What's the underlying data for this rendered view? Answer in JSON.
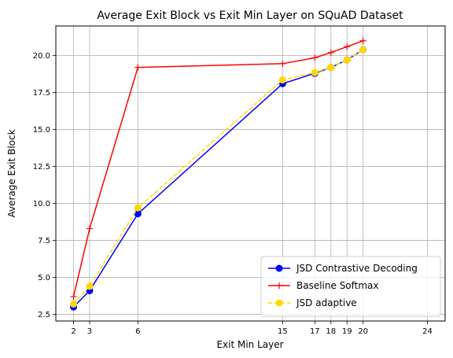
{
  "chart_data": {
    "type": "line",
    "title": "Average Exit Block vs Exit Min Layer on SQuAD Dataset",
    "xlabel": "Exit Min Layer",
    "ylabel": "Average Exit Block",
    "xlim": [
      0.9,
      25.1
    ],
    "ylim": [
      2.05,
      22.0
    ],
    "xticks": [
      2,
      3,
      6,
      15,
      17,
      18,
      19,
      20,
      24
    ],
    "xtick_labels": [
      "2",
      "3",
      "6",
      "15",
      "17",
      "18",
      "19",
      "20",
      "24"
    ],
    "yticks": [
      2.5,
      5.0,
      7.5,
      10.0,
      12.5,
      15.0,
      17.5,
      20.0
    ],
    "ytick_labels": [
      "2.5",
      "5.0",
      "7.5",
      "10.0",
      "12.5",
      "15.0",
      "17.5",
      "20.0"
    ],
    "grid": true,
    "legend_position": "lower-right",
    "series": [
      {
        "name": "JSD Contrastive Decoding",
        "color": "#0000ff",
        "marker": "circle",
        "linestyle": "solid",
        "x": [
          2,
          3,
          6,
          15,
          17,
          18,
          19,
          20
        ],
        "values": [
          3.0,
          4.1,
          9.3,
          18.1,
          18.8,
          19.2,
          19.7,
          20.4
        ]
      },
      {
        "name": "Baseline Softmax",
        "color": "#ff0000",
        "marker": "plus",
        "linestyle": "solid",
        "x": [
          2,
          3,
          6,
          15,
          17,
          18,
          19,
          20
        ],
        "values": [
          3.7,
          8.3,
          19.2,
          19.45,
          19.85,
          20.2,
          20.6,
          21.0
        ]
      },
      {
        "name": "JSD adaptive",
        "color": "#ffd700",
        "marker": "circle",
        "linestyle": "dashed",
        "x": [
          2,
          3,
          6,
          15,
          17,
          18,
          19,
          20
        ],
        "values": [
          3.2,
          4.4,
          9.7,
          18.35,
          18.85,
          19.2,
          19.7,
          20.4
        ]
      }
    ]
  }
}
